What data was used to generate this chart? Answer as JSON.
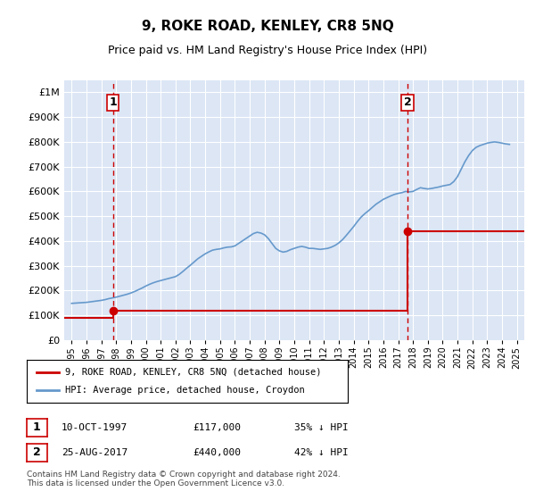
{
  "title": "9, ROKE ROAD, KENLEY, CR8 5NQ",
  "subtitle": "Price paid vs. HM Land Registry's House Price Index (HPI)",
  "xlabel": "",
  "ylabel": "",
  "background_color": "#dce6f5",
  "plot_bg_color": "#dce6f5",
  "ylim": [
    0,
    1050000
  ],
  "yticks": [
    0,
    100000,
    200000,
    300000,
    400000,
    500000,
    600000,
    700000,
    800000,
    900000,
    1000000
  ],
  "ytick_labels": [
    "£0",
    "£100K",
    "£200K",
    "£300K",
    "£400K",
    "£500K",
    "£600K",
    "£700K",
    "£800K",
    "£900K",
    "£1M"
  ],
  "xlim_start": 1994.5,
  "xlim_end": 2025.5,
  "xticks": [
    1995,
    1996,
    1997,
    1998,
    1999,
    2000,
    2001,
    2002,
    2003,
    2004,
    2005,
    2006,
    2007,
    2008,
    2009,
    2010,
    2011,
    2012,
    2013,
    2014,
    2015,
    2016,
    2017,
    2018,
    2019,
    2020,
    2021,
    2022,
    2023,
    2024,
    2025
  ],
  "sale1_year": 1997.78,
  "sale1_price": 117000,
  "sale1_label": "1",
  "sale2_year": 2017.65,
  "sale2_price": 440000,
  "sale2_label": "2",
  "legend_line1": "9, ROKE ROAD, KENLEY, CR8 5NQ (detached house)",
  "legend_line2": "HPI: Average price, detached house, Croydon",
  "annot1_date": "10-OCT-1997",
  "annot1_price": "£117,000",
  "annot1_hpi": "35% ↓ HPI",
  "annot2_date": "25-AUG-2017",
  "annot2_price": "£440,000",
  "annot2_hpi": "42% ↓ HPI",
  "footer": "Contains HM Land Registry data © Crown copyright and database right 2024.\nThis data is licensed under the Open Government Licence v3.0.",
  "hpi_color": "#6699cc",
  "price_color": "#cc0000",
  "marker_color": "#cc0000",
  "dashed_color": "#cc0000",
  "hpi_data_x": [
    1995,
    1995.25,
    1995.5,
    1995.75,
    1996,
    1996.25,
    1996.5,
    1996.75,
    1997,
    1997.25,
    1997.5,
    1997.75,
    1998,
    1998.25,
    1998.5,
    1998.75,
    1999,
    1999.25,
    1999.5,
    1999.75,
    2000,
    2000.25,
    2000.5,
    2000.75,
    2001,
    2001.25,
    2001.5,
    2001.75,
    2002,
    2002.25,
    2002.5,
    2002.75,
    2003,
    2003.25,
    2003.5,
    2003.75,
    2004,
    2004.25,
    2004.5,
    2004.75,
    2005,
    2005.25,
    2005.5,
    2005.75,
    2006,
    2006.25,
    2006.5,
    2006.75,
    2007,
    2007.25,
    2007.5,
    2007.75,
    2008,
    2008.25,
    2008.5,
    2008.75,
    2009,
    2009.25,
    2009.5,
    2009.75,
    2010,
    2010.25,
    2010.5,
    2010.75,
    2011,
    2011.25,
    2011.5,
    2011.75,
    2012,
    2012.25,
    2012.5,
    2012.75,
    2013,
    2013.25,
    2013.5,
    2013.75,
    2014,
    2014.25,
    2014.5,
    2014.75,
    2015,
    2015.25,
    2015.5,
    2015.75,
    2016,
    2016.25,
    2016.5,
    2016.75,
    2017,
    2017.25,
    2017.5,
    2017.75,
    2018,
    2018.25,
    2018.5,
    2018.75,
    2019,
    2019.25,
    2019.5,
    2019.75,
    2020,
    2020.25,
    2020.5,
    2020.75,
    2021,
    2021.25,
    2021.5,
    2021.75,
    2022,
    2022.25,
    2022.5,
    2022.75,
    2023,
    2023.25,
    2023.5,
    2023.75,
    2024,
    2024.25,
    2024.5
  ],
  "hpi_data_y": [
    148000,
    149000,
    150000,
    151000,
    152000,
    154000,
    156000,
    158000,
    160000,
    163000,
    167000,
    170000,
    173000,
    177000,
    181000,
    185000,
    190000,
    196000,
    203000,
    210000,
    218000,
    225000,
    231000,
    236000,
    240000,
    244000,
    248000,
    252000,
    256000,
    265000,
    277000,
    290000,
    302000,
    315000,
    328000,
    338000,
    348000,
    356000,
    363000,
    366000,
    368000,
    372000,
    375000,
    376000,
    380000,
    390000,
    400000,
    410000,
    420000,
    430000,
    435000,
    432000,
    425000,
    410000,
    390000,
    370000,
    360000,
    355000,
    358000,
    365000,
    370000,
    375000,
    378000,
    375000,
    370000,
    370000,
    368000,
    366000,
    368000,
    370000,
    375000,
    382000,
    392000,
    405000,
    422000,
    440000,
    458000,
    478000,
    496000,
    510000,
    522000,
    535000,
    548000,
    558000,
    568000,
    575000,
    582000,
    588000,
    592000,
    595000,
    600000,
    598000,
    600000,
    608000,
    615000,
    612000,
    610000,
    612000,
    615000,
    618000,
    622000,
    625000,
    628000,
    640000,
    660000,
    690000,
    720000,
    745000,
    765000,
    778000,
    785000,
    790000,
    795000,
    798000,
    800000,
    798000,
    795000,
    792000,
    790000
  ],
  "price_data_x": [
    1994.5,
    1997.78,
    1997.78,
    2017.65,
    2017.65,
    2025.5
  ],
  "price_data_y": [
    90000,
    90000,
    117000,
    117000,
    440000,
    440000
  ]
}
